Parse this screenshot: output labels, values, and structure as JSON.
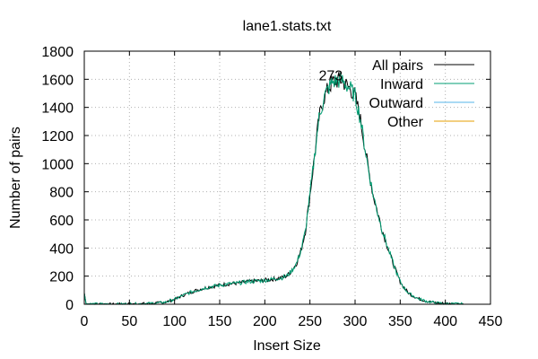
{
  "chart_data": {
    "type": "line",
    "title": "lane1.stats.txt",
    "xlabel": "Insert Size",
    "ylabel": "Number of pairs",
    "xlim": [
      0,
      450
    ],
    "ylim": [
      0,
      1800
    ],
    "xticks": [
      0,
      50,
      100,
      150,
      200,
      250,
      300,
      350,
      400,
      450
    ],
    "yticks": [
      0,
      200,
      400,
      600,
      800,
      1000,
      1200,
      1400,
      1600,
      1800
    ],
    "grid": true,
    "legend_position": "top-right",
    "annotation": {
      "text": "273",
      "x": 273,
      "y": 1600
    },
    "series": [
      {
        "name": "All pairs",
        "color": "#000000",
        "points": [
          [
            0,
            80
          ],
          [
            2,
            3
          ],
          [
            30,
            0
          ],
          [
            60,
            3
          ],
          [
            80,
            8
          ],
          [
            90,
            15
          ],
          [
            100,
            35
          ],
          [
            110,
            65
          ],
          [
            120,
            90
          ],
          [
            130,
            110
          ],
          [
            140,
            125
          ],
          [
            150,
            135
          ],
          [
            160,
            145
          ],
          [
            170,
            150
          ],
          [
            180,
            160
          ],
          [
            190,
            165
          ],
          [
            200,
            170
          ],
          [
            210,
            180
          ],
          [
            220,
            190
          ],
          [
            225,
            205
          ],
          [
            230,
            240
          ],
          [
            235,
            290
          ],
          [
            240,
            380
          ],
          [
            245,
            520
          ],
          [
            250,
            780
          ],
          [
            255,
            1050
          ],
          [
            260,
            1320
          ],
          [
            265,
            1460
          ],
          [
            270,
            1530
          ],
          [
            275,
            1580
          ],
          [
            280,
            1590
          ],
          [
            285,
            1595
          ],
          [
            290,
            1560
          ],
          [
            295,
            1530
          ],
          [
            300,
            1480
          ],
          [
            305,
            1350
          ],
          [
            310,
            1150
          ],
          [
            315,
            950
          ],
          [
            320,
            780
          ],
          [
            325,
            650
          ],
          [
            330,
            530
          ],
          [
            335,
            430
          ],
          [
            340,
            330
          ],
          [
            345,
            240
          ],
          [
            350,
            160
          ],
          [
            355,
            110
          ],
          [
            360,
            75
          ],
          [
            370,
            40
          ],
          [
            380,
            20
          ],
          [
            390,
            10
          ],
          [
            400,
            5
          ],
          [
            410,
            3
          ],
          [
            420,
            2
          ]
        ]
      },
      {
        "name": "Inward",
        "color": "#009e73",
        "points": [
          [
            0,
            80
          ],
          [
            2,
            3
          ],
          [
            30,
            0
          ],
          [
            60,
            3
          ],
          [
            80,
            8
          ],
          [
            90,
            15
          ],
          [
            100,
            35
          ],
          [
            110,
            65
          ],
          [
            120,
            90
          ],
          [
            130,
            110
          ],
          [
            140,
            125
          ],
          [
            150,
            135
          ],
          [
            160,
            145
          ],
          [
            170,
            150
          ],
          [
            180,
            160
          ],
          [
            190,
            165
          ],
          [
            200,
            170
          ],
          [
            210,
            180
          ],
          [
            220,
            190
          ],
          [
            225,
            205
          ],
          [
            230,
            240
          ],
          [
            235,
            290
          ],
          [
            240,
            380
          ],
          [
            245,
            520
          ],
          [
            250,
            780
          ],
          [
            255,
            1050
          ],
          [
            260,
            1320
          ],
          [
            265,
            1460
          ],
          [
            270,
            1530
          ],
          [
            275,
            1580
          ],
          [
            280,
            1590
          ],
          [
            285,
            1595
          ],
          [
            290,
            1560
          ],
          [
            295,
            1530
          ],
          [
            300,
            1480
          ],
          [
            305,
            1350
          ],
          [
            310,
            1150
          ],
          [
            315,
            950
          ],
          [
            320,
            780
          ],
          [
            325,
            650
          ],
          [
            330,
            530
          ],
          [
            335,
            430
          ],
          [
            340,
            330
          ],
          [
            345,
            240
          ],
          [
            350,
            160
          ],
          [
            355,
            110
          ],
          [
            360,
            75
          ],
          [
            370,
            40
          ],
          [
            380,
            20
          ],
          [
            390,
            10
          ],
          [
            400,
            5
          ],
          [
            410,
            3
          ],
          [
            420,
            2
          ]
        ]
      },
      {
        "name": "Outward",
        "color": "#56b4e9",
        "points": [
          [
            0,
            0
          ],
          [
            450,
            0
          ]
        ]
      },
      {
        "name": "Other",
        "color": "#e69f00",
        "points": [
          [
            0,
            0
          ],
          [
            450,
            0
          ]
        ]
      }
    ]
  }
}
